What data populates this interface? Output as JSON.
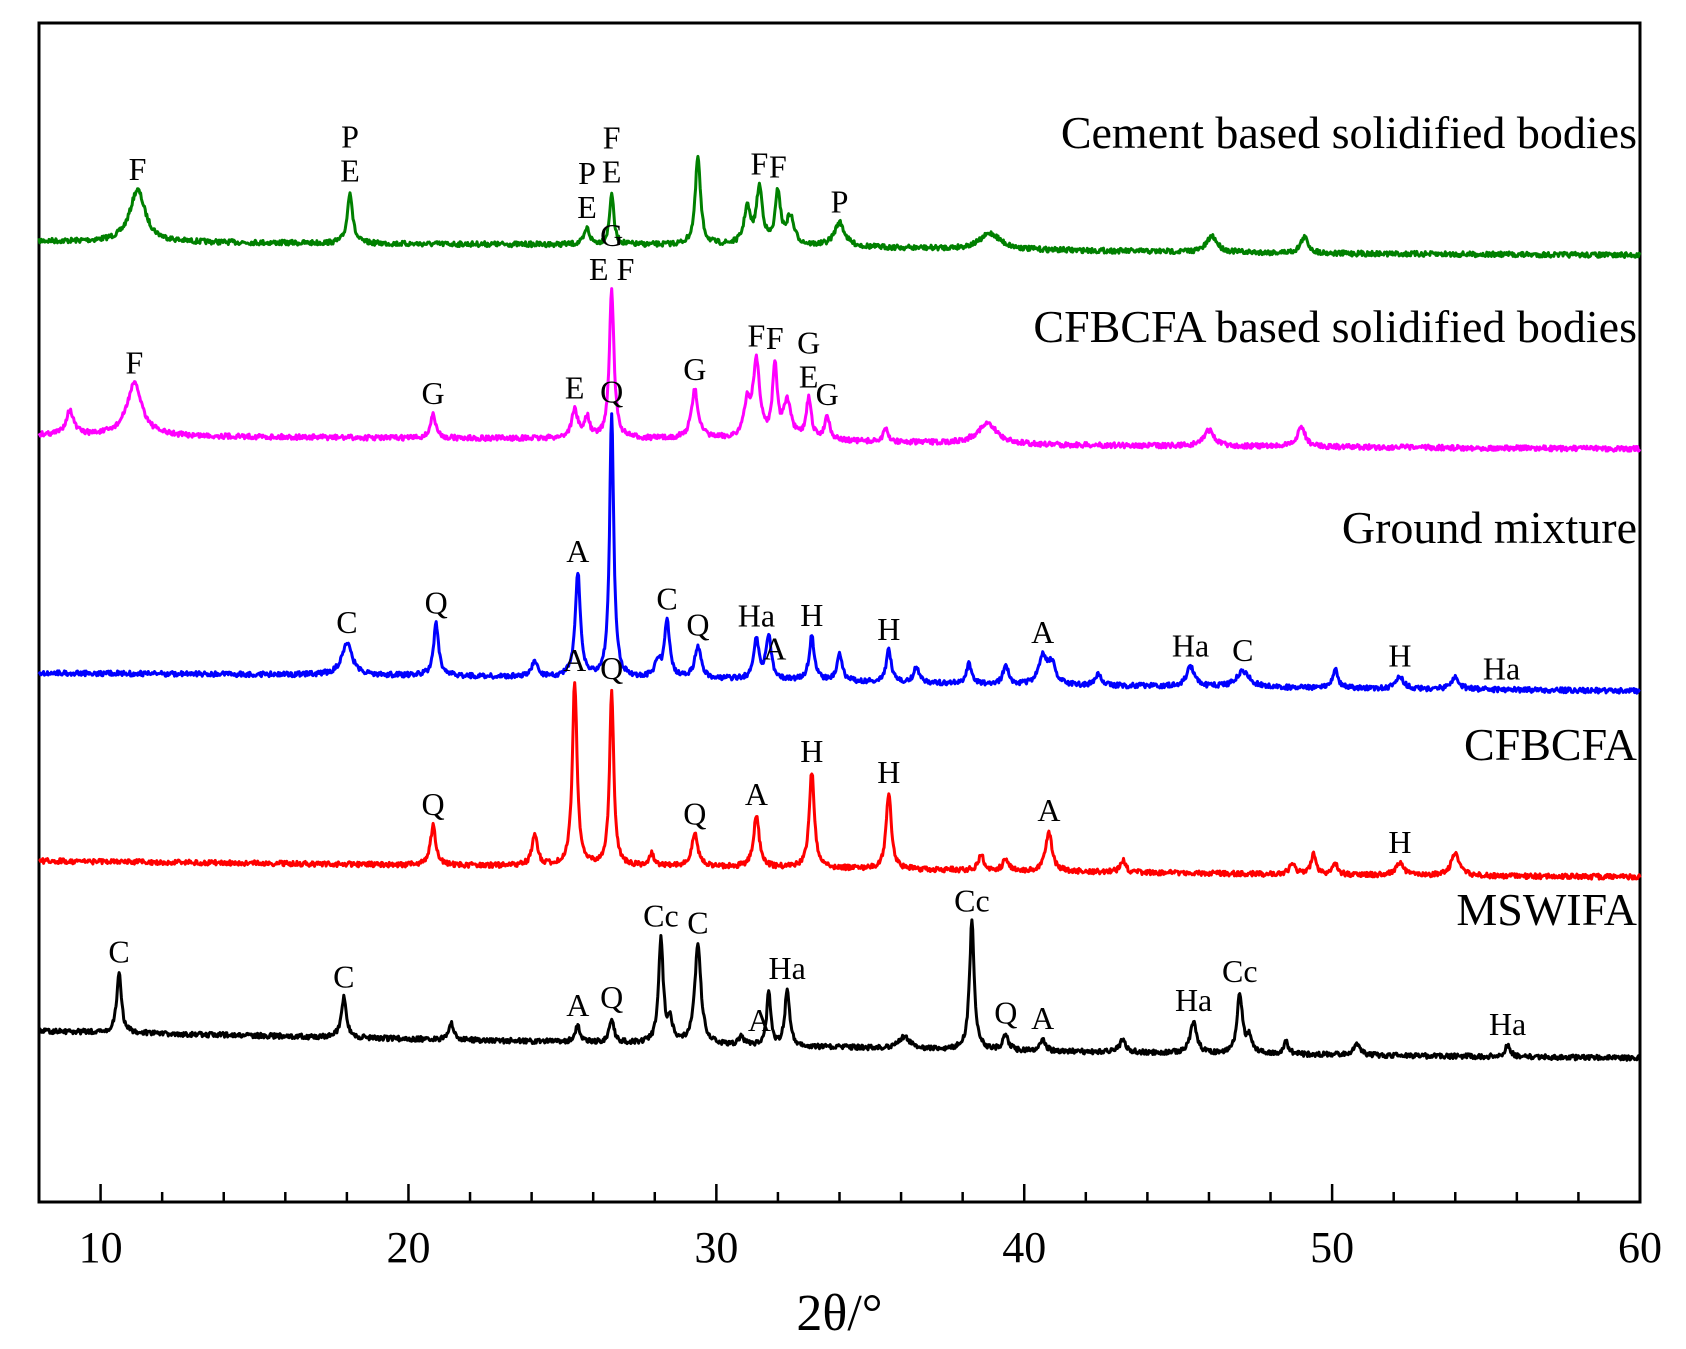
{
  "chart_data": {
    "type": "line",
    "title": "",
    "xlabel": "2θ/°",
    "ylabel": "",
    "xlim": [
      8,
      60
    ],
    "xticks": [
      10,
      20,
      30,
      40,
      50,
      60
    ],
    "grid": false,
    "series": [
      {
        "name": "Cement based solidified bodies",
        "color": "#008000",
        "baseline": [
          [
            8,
            0.52
          ],
          [
            20,
            0.45
          ],
          [
            30,
            0.42
          ],
          [
            40,
            0.3
          ],
          [
            50,
            0.21
          ],
          [
            60,
            0.17
          ]
        ],
        "peaks": [
          {
            "x": 11.2,
            "h": 1.3,
            "w": 0.3
          },
          {
            "x": 18.1,
            "h": 1.3,
            "w": 0.1
          },
          {
            "x": 25.8,
            "h": 0.4,
            "w": 0.1
          },
          {
            "x": 26.6,
            "h": 1.3,
            "w": 0.08
          },
          {
            "x": 29.4,
            "h": 2.2,
            "w": 0.1
          },
          {
            "x": 31.0,
            "h": 0.9,
            "w": 0.12
          },
          {
            "x": 31.4,
            "h": 1.4,
            "w": 0.12
          },
          {
            "x": 32.0,
            "h": 1.3,
            "w": 0.1
          },
          {
            "x": 32.4,
            "h": 0.7,
            "w": 0.15
          },
          {
            "x": 34.0,
            "h": 0.6,
            "w": 0.2
          },
          {
            "x": 38.9,
            "h": 0.4,
            "w": 0.4
          },
          {
            "x": 46.1,
            "h": 0.4,
            "w": 0.2
          },
          {
            "x": 49.1,
            "h": 0.4,
            "w": 0.15
          }
        ],
        "peak_labels": [
          {
            "x": 11.2,
            "text": [
              "F"
            ]
          },
          {
            "x": 18.1,
            "text": [
              "P",
              "E"
            ]
          },
          {
            "x": 25.8,
            "text": [
              "P",
              "E"
            ]
          },
          {
            "x": 26.6,
            "text": [
              "F",
              "E"
            ]
          },
          {
            "x": 31.4,
            "text": [
              "F"
            ]
          },
          {
            "x": 32.0,
            "text": [
              "F"
            ]
          },
          {
            "x": 34.0,
            "text": [
              "P"
            ]
          }
        ]
      },
      {
        "name": "CFBCFA based solidified bodies",
        "color": "#ff00ff",
        "baseline": [
          [
            8,
            0.5
          ],
          [
            20,
            0.42
          ],
          [
            30,
            0.4
          ],
          [
            40,
            0.25
          ],
          [
            50,
            0.2
          ],
          [
            60,
            0.15
          ]
        ],
        "peaks": [
          {
            "x": 9.0,
            "h": 0.6,
            "w": 0.15
          },
          {
            "x": 11.1,
            "h": 1.3,
            "w": 0.3
          },
          {
            "x": 20.8,
            "h": 0.6,
            "w": 0.1
          },
          {
            "x": 25.4,
            "h": 0.7,
            "w": 0.12
          },
          {
            "x": 25.8,
            "h": 0.5,
            "w": 0.1
          },
          {
            "x": 26.6,
            "h": 3.7,
            "w": 0.09
          },
          {
            "x": 29.3,
            "h": 1.2,
            "w": 0.13
          },
          {
            "x": 31.0,
            "h": 0.8,
            "w": 0.12
          },
          {
            "x": 31.3,
            "h": 1.9,
            "w": 0.13
          },
          {
            "x": 31.9,
            "h": 1.8,
            "w": 0.09
          },
          {
            "x": 32.3,
            "h": 0.9,
            "w": 0.15
          },
          {
            "x": 33.0,
            "h": 1.0,
            "w": 0.1
          },
          {
            "x": 33.6,
            "h": 0.6,
            "w": 0.1
          },
          {
            "x": 35.5,
            "h": 0.3,
            "w": 0.1
          },
          {
            "x": 38.8,
            "h": 0.5,
            "w": 0.4
          },
          {
            "x": 46.0,
            "h": 0.4,
            "w": 0.2
          },
          {
            "x": 49.0,
            "h": 0.5,
            "w": 0.15
          }
        ],
        "peak_labels": [
          {
            "x": 11.1,
            "text": [
              "F"
            ]
          },
          {
            "x": 20.8,
            "text": [
              "G"
            ]
          },
          {
            "x": 25.4,
            "text": [
              "E"
            ]
          },
          {
            "x": 26.6,
            "text": [
              "G",
              "E F"
            ]
          },
          {
            "x": 29.3,
            "text": [
              "G"
            ]
          },
          {
            "x": 31.3,
            "text": [
              "F"
            ]
          },
          {
            "x": 31.9,
            "text": [
              "F"
            ]
          },
          {
            "x": 33.0,
            "text": [
              "G",
              "E"
            ]
          },
          {
            "x": 33.6,
            "text": [
              "G"
            ]
          }
        ]
      },
      {
        "name": "Ground mixture",
        "color": "#0000ff",
        "baseline": [
          [
            8,
            0.6
          ],
          [
            18,
            0.55
          ],
          [
            30,
            0.45
          ],
          [
            40,
            0.3
          ],
          [
            50,
            0.22
          ],
          [
            60,
            0.15
          ]
        ],
        "peaks": [
          {
            "x": 18.0,
            "h": 0.8,
            "w": 0.2
          },
          {
            "x": 20.9,
            "h": 1.3,
            "w": 0.1
          },
          {
            "x": 24.1,
            "h": 0.4,
            "w": 0.1
          },
          {
            "x": 25.5,
            "h": 2.6,
            "w": 0.1
          },
          {
            "x": 26.6,
            "h": 6.6,
            "w": 0.08
          },
          {
            "x": 28.1,
            "h": 0.4,
            "w": 0.1
          },
          {
            "x": 28.4,
            "h": 1.4,
            "w": 0.1
          },
          {
            "x": 29.4,
            "h": 0.8,
            "w": 0.12
          },
          {
            "x": 31.3,
            "h": 1.0,
            "w": 0.1
          },
          {
            "x": 31.7,
            "h": 1.1,
            "w": 0.1
          },
          {
            "x": 33.1,
            "h": 1.1,
            "w": 0.1
          },
          {
            "x": 34.0,
            "h": 0.7,
            "w": 0.1
          },
          {
            "x": 35.6,
            "h": 0.8,
            "w": 0.1
          },
          {
            "x": 36.5,
            "h": 0.4,
            "w": 0.1
          },
          {
            "x": 38.2,
            "h": 0.5,
            "w": 0.1
          },
          {
            "x": 39.4,
            "h": 0.5,
            "w": 0.1
          },
          {
            "x": 40.6,
            "h": 0.7,
            "w": 0.15
          },
          {
            "x": 40.9,
            "h": 0.5,
            "w": 0.15
          },
          {
            "x": 42.4,
            "h": 0.3,
            "w": 0.1
          },
          {
            "x": 45.4,
            "h": 0.5,
            "w": 0.15
          },
          {
            "x": 47.1,
            "h": 0.4,
            "w": 0.25
          },
          {
            "x": 50.1,
            "h": 0.5,
            "w": 0.1
          },
          {
            "x": 52.2,
            "h": 0.3,
            "w": 0.15
          },
          {
            "x": 54.0,
            "h": 0.3,
            "w": 0.15
          }
        ],
        "peak_labels": [
          {
            "x": 18.0,
            "text": [
              "C"
            ]
          },
          {
            "x": 20.9,
            "text": [
              "Q"
            ]
          },
          {
            "x": 25.5,
            "text": [
              "A"
            ]
          },
          {
            "x": 26.6,
            "text": [
              "Q"
            ]
          },
          {
            "x": 28.4,
            "text": [
              "C"
            ]
          },
          {
            "x": 29.4,
            "text": [
              "Q"
            ]
          },
          {
            "x": 31.3,
            "text": [
              "Ha"
            ]
          },
          {
            "x": 31.9,
            "text": [
              "A"
            ]
          },
          {
            "x": 33.1,
            "text": [
              "H"
            ]
          },
          {
            "x": 35.6,
            "text": [
              "H"
            ]
          },
          {
            "x": 40.6,
            "text": [
              "A"
            ]
          },
          {
            "x": 45.4,
            "text": [
              "Ha"
            ]
          },
          {
            "x": 47.1,
            "text": [
              "C"
            ]
          },
          {
            "x": 52.2,
            "text": [
              "H"
            ]
          },
          {
            "x": 55.5,
            "text": [
              "Ha"
            ]
          }
        ]
      },
      {
        "name": "CFBCFA",
        "color": "#ff0000",
        "baseline": [
          [
            8,
            0.6
          ],
          [
            20,
            0.5
          ],
          [
            30,
            0.45
          ],
          [
            40,
            0.35
          ],
          [
            50,
            0.25
          ],
          [
            60,
            0.2
          ]
        ],
        "peaks": [
          {
            "x": 20.8,
            "h": 1.0,
            "w": 0.1
          },
          {
            "x": 24.1,
            "h": 0.8,
            "w": 0.1
          },
          {
            "x": 25.4,
            "h": 4.6,
            "w": 0.09
          },
          {
            "x": 26.6,
            "h": 4.4,
            "w": 0.08
          },
          {
            "x": 27.9,
            "h": 0.3,
            "w": 0.1
          },
          {
            "x": 29.3,
            "h": 0.8,
            "w": 0.12
          },
          {
            "x": 31.3,
            "h": 1.3,
            "w": 0.11
          },
          {
            "x": 33.1,
            "h": 2.4,
            "w": 0.1
          },
          {
            "x": 35.6,
            "h": 1.9,
            "w": 0.1
          },
          {
            "x": 38.6,
            "h": 0.4,
            "w": 0.1
          },
          {
            "x": 39.4,
            "h": 0.3,
            "w": 0.1
          },
          {
            "x": 40.8,
            "h": 1.0,
            "w": 0.12
          },
          {
            "x": 43.2,
            "h": 0.3,
            "w": 0.1
          },
          {
            "x": 48.7,
            "h": 0.3,
            "w": 0.1
          },
          {
            "x": 49.4,
            "h": 0.5,
            "w": 0.1
          },
          {
            "x": 50.1,
            "h": 0.3,
            "w": 0.1
          },
          {
            "x": 52.2,
            "h": 0.3,
            "w": 0.15
          },
          {
            "x": 54.0,
            "h": 0.6,
            "w": 0.15
          }
        ],
        "peak_labels": [
          {
            "x": 20.8,
            "text": [
              "Q"
            ]
          },
          {
            "x": 25.4,
            "text": [
              "A"
            ]
          },
          {
            "x": 26.6,
            "text": [
              "Q"
            ]
          },
          {
            "x": 29.3,
            "text": [
              "Q"
            ]
          },
          {
            "x": 31.3,
            "text": [
              "A"
            ]
          },
          {
            "x": 33.1,
            "text": [
              "H"
            ]
          },
          {
            "x": 35.6,
            "text": [
              "H"
            ]
          },
          {
            "x": 40.8,
            "text": [
              "A"
            ]
          },
          {
            "x": 52.2,
            "text": [
              "H"
            ]
          }
        ]
      },
      {
        "name": "MSWIFA",
        "color": "#000000",
        "baseline": [
          [
            8,
            0.9
          ],
          [
            20,
            0.7
          ],
          [
            30,
            0.55
          ],
          [
            40,
            0.4
          ],
          [
            50,
            0.3
          ],
          [
            60,
            0.22
          ]
        ],
        "peaks": [
          {
            "x": 10.6,
            "h": 1.5,
            "w": 0.09
          },
          {
            "x": 17.9,
            "h": 1.0,
            "w": 0.1
          },
          {
            "x": 21.4,
            "h": 0.4,
            "w": 0.1
          },
          {
            "x": 25.5,
            "h": 0.4,
            "w": 0.1
          },
          {
            "x": 26.6,
            "h": 0.6,
            "w": 0.09
          },
          {
            "x": 28.2,
            "h": 2.6,
            "w": 0.09
          },
          {
            "x": 28.5,
            "h": 0.5,
            "w": 0.1
          },
          {
            "x": 29.4,
            "h": 2.5,
            "w": 0.12
          },
          {
            "x": 30.8,
            "h": 0.2,
            "w": 0.1
          },
          {
            "x": 31.7,
            "h": 1.3,
            "w": 0.08
          },
          {
            "x": 32.3,
            "h": 1.4,
            "w": 0.09
          },
          {
            "x": 36.1,
            "h": 0.3,
            "w": 0.2
          },
          {
            "x": 38.3,
            "h": 3.2,
            "w": 0.09
          },
          {
            "x": 39.4,
            "h": 0.4,
            "w": 0.1
          },
          {
            "x": 40.6,
            "h": 0.3,
            "w": 0.1
          },
          {
            "x": 43.2,
            "h": 0.3,
            "w": 0.12
          },
          {
            "x": 45.5,
            "h": 0.8,
            "w": 0.12
          },
          {
            "x": 47.0,
            "h": 1.5,
            "w": 0.1
          },
          {
            "x": 47.3,
            "h": 0.4,
            "w": 0.1
          },
          {
            "x": 48.5,
            "h": 0.3,
            "w": 0.1
          },
          {
            "x": 50.8,
            "h": 0.3,
            "w": 0.12
          },
          {
            "x": 55.7,
            "h": 0.3,
            "w": 0.1
          }
        ],
        "peak_labels": [
          {
            "x": 10.6,
            "text": [
              "C"
            ]
          },
          {
            "x": 17.9,
            "text": [
              "C"
            ]
          },
          {
            "x": 25.5,
            "text": [
              "A"
            ]
          },
          {
            "x": 26.6,
            "text": [
              "Q"
            ]
          },
          {
            "x": 28.2,
            "text": [
              "Cc"
            ]
          },
          {
            "x": 29.4,
            "text": [
              "C"
            ]
          },
          {
            "x": 31.4,
            "text": [
              "A"
            ]
          },
          {
            "x": 32.3,
            "text": [
              "Ha"
            ]
          },
          {
            "x": 38.3,
            "text": [
              "Cc"
            ]
          },
          {
            "x": 39.4,
            "text": [
              "Q"
            ]
          },
          {
            "x": 40.6,
            "text": [
              "A"
            ]
          },
          {
            "x": 45.5,
            "text": [
              "Ha"
            ]
          },
          {
            "x": 47.0,
            "text": [
              "Cc"
            ]
          },
          {
            "x": 55.7,
            "text": [
              "Ha"
            ]
          }
        ]
      }
    ]
  }
}
